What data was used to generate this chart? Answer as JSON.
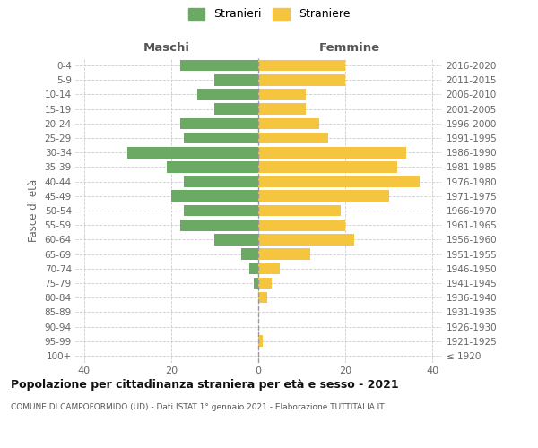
{
  "age_groups": [
    "100+",
    "95-99",
    "90-94",
    "85-89",
    "80-84",
    "75-79",
    "70-74",
    "65-69",
    "60-64",
    "55-59",
    "50-54",
    "45-49",
    "40-44",
    "35-39",
    "30-34",
    "25-29",
    "20-24",
    "15-19",
    "10-14",
    "5-9",
    "0-4"
  ],
  "birth_years": [
    "≤ 1920",
    "1921-1925",
    "1926-1930",
    "1931-1935",
    "1936-1940",
    "1941-1945",
    "1946-1950",
    "1951-1955",
    "1956-1960",
    "1961-1965",
    "1966-1970",
    "1971-1975",
    "1976-1980",
    "1981-1985",
    "1986-1990",
    "1991-1995",
    "1996-2000",
    "2001-2005",
    "2006-2010",
    "2011-2015",
    "2016-2020"
  ],
  "males": [
    0,
    0,
    0,
    0,
    0,
    1,
    2,
    4,
    10,
    18,
    17,
    20,
    17,
    21,
    30,
    17,
    18,
    10,
    14,
    10,
    18
  ],
  "females": [
    0,
    1,
    0,
    0,
    2,
    3,
    5,
    12,
    22,
    20,
    19,
    30,
    37,
    32,
    34,
    16,
    14,
    11,
    11,
    20,
    20
  ],
  "male_color": "#6aaa64",
  "female_color": "#f5c540",
  "grid_color": "#cccccc",
  "title": "Popolazione per cittadinanza straniera per età e sesso - 2021",
  "subtitle": "COMUNE DI CAMPOFORMIDO (UD) - Dati ISTAT 1° gennaio 2021 - Elaborazione TUTTITALIA.IT",
  "ylabel_left": "Fasce di età",
  "xlabel_left": "Maschi",
  "xlabel_right": "Femmine",
  "legend_males": "Stranieri",
  "legend_females": "Straniere",
  "xlim": 42
}
